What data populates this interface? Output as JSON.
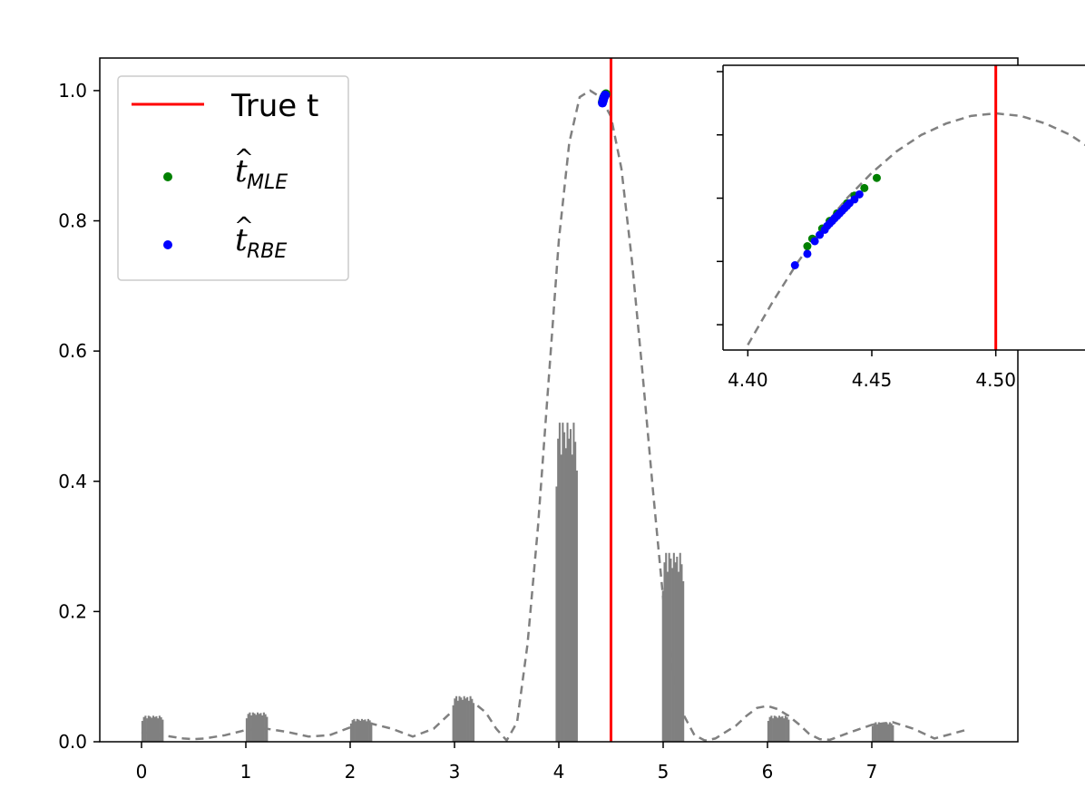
{
  "chart_data": [
    {
      "type": "bar",
      "title": "",
      "xlabel": "",
      "ylabel": "",
      "xlim": [
        -0.4,
        8.4
      ],
      "ylim": [
        0,
        1.05
      ],
      "grid": false,
      "legend_position": "top-left",
      "x_ticks": [
        {
          "value": 0,
          "label": "0"
        },
        {
          "value": 1,
          "label": "1"
        },
        {
          "value": 2,
          "label": "2"
        },
        {
          "value": 3,
          "label": "3"
        },
        {
          "value": 4,
          "label": "4"
        },
        {
          "value": 5,
          "label": "5"
        },
        {
          "value": 6,
          "label": "6"
        },
        {
          "value": 7,
          "label": "7"
        }
      ],
      "y_ticks": [
        {
          "value": 0.0,
          "label": "0.0"
        },
        {
          "value": 0.2,
          "label": "0.2"
        },
        {
          "value": 0.4,
          "label": "0.4"
        },
        {
          "value": 0.6,
          "label": "0.6"
        },
        {
          "value": 0.8,
          "label": "0.8"
        },
        {
          "value": 1.0,
          "label": "1.0"
        }
      ],
      "true_t": 4.5,
      "series": [
        {
          "name": "",
          "kind": "histogram-clusters",
          "color": "#808080",
          "bar_width": 0.012,
          "clusters": [
            {
              "center": 0.1,
              "height": 0.04
            },
            {
              "center": 1.1,
              "height": 0.045
            },
            {
              "center": 2.1,
              "height": 0.035
            },
            {
              "center": 3.08,
              "height": 0.07
            },
            {
              "center": 4.07,
              "height": 0.49
            },
            {
              "center": 5.09,
              "height": 0.29
            },
            {
              "center": 6.1,
              "height": 0.04
            },
            {
              "center": 7.1,
              "height": 0.03
            }
          ]
        },
        {
          "name": "",
          "kind": "dashed-curve",
          "color": "#808080",
          "x": [
            0.0,
            0.2,
            0.4,
            0.5,
            0.6,
            0.8,
            1.0,
            1.2,
            1.4,
            1.6,
            1.8,
            2.0,
            2.2,
            2.4,
            2.6,
            2.8,
            3.0,
            3.1,
            3.2,
            3.3,
            3.4,
            3.5,
            3.6,
            3.7,
            3.8,
            3.9,
            4.0,
            4.1,
            4.2,
            4.3,
            4.4,
            4.5,
            4.6,
            4.7,
            4.8,
            4.9,
            5.0,
            5.1,
            5.2,
            5.3,
            5.4,
            5.5,
            5.6,
            5.7,
            5.8,
            5.9,
            6.0,
            6.1,
            6.2,
            6.3,
            6.4,
            6.5,
            6.6,
            6.8,
            7.0,
            7.2,
            7.4,
            7.6,
            7.9
          ],
          "y": [
            0.015,
            0.01,
            0.005,
            0.004,
            0.005,
            0.01,
            0.018,
            0.02,
            0.015,
            0.008,
            0.01,
            0.022,
            0.028,
            0.02,
            0.008,
            0.02,
            0.05,
            0.06,
            0.058,
            0.045,
            0.02,
            0.002,
            0.03,
            0.15,
            0.33,
            0.55,
            0.77,
            0.92,
            0.99,
            1.0,
            0.99,
            0.96,
            0.88,
            0.74,
            0.57,
            0.39,
            0.22,
            0.1,
            0.04,
            0.01,
            0.002,
            0.005,
            0.015,
            0.025,
            0.04,
            0.052,
            0.055,
            0.05,
            0.04,
            0.027,
            0.012,
            0.004,
            0.003,
            0.015,
            0.026,
            0.03,
            0.02,
            0.005,
            0.018
          ]
        },
        {
          "name": "True t",
          "kind": "vline",
          "color": "#ff0000",
          "x": 4.5
        },
        {
          "name": "MLE",
          "kind": "scatter",
          "color": "#008000",
          "points": [
            [
              4.418,
              0.983
            ],
            [
              4.422,
              0.985
            ],
            [
              4.426,
              0.987
            ],
            [
              4.43,
              0.989
            ],
            [
              4.435,
              0.991
            ],
            [
              4.44,
              0.992
            ],
            [
              4.446,
              0.994
            ],
            [
              4.452,
              0.995
            ]
          ]
        },
        {
          "name": "RBE",
          "kind": "scatter",
          "color": "#0000ff",
          "points": [
            [
              4.418,
              0.981
            ],
            [
              4.424,
              0.984
            ],
            [
              4.427,
              0.986
            ],
            [
              4.43,
              0.988
            ],
            [
              4.432,
              0.989
            ],
            [
              4.435,
              0.99
            ],
            [
              4.437,
              0.991
            ],
            [
              4.44,
              0.992
            ],
            [
              4.443,
              0.993
            ],
            [
              4.445,
              0.993
            ]
          ]
        }
      ],
      "legend": [
        {
          "label": "True t",
          "marker": "line",
          "color": "#ff0000"
        },
        {
          "label": "t",
          "label_sub": "MLE",
          "marker": "dot",
          "color": "#008000"
        },
        {
          "label": "t",
          "label_sub": "RBE",
          "marker": "dot",
          "color": "#0000ff"
        }
      ]
    },
    {
      "type": "scatter",
      "role": "inset",
      "xlim": [
        4.39,
        4.54
      ],
      "ylim": [
        0.978,
        1.0005
      ],
      "x_ticks": [
        {
          "value": 4.4,
          "label": "4.40"
        },
        {
          "value": 4.45,
          "label": "4.45"
        },
        {
          "value": 4.5,
          "label": "4.50"
        }
      ],
      "y_tick_values": [
        0.98,
        0.985,
        0.99,
        0.995,
        1.0
      ],
      "true_t": 4.5,
      "curve": {
        "color": "#808080",
        "x": [
          4.4,
          4.41,
          4.42,
          4.43,
          4.44,
          4.45,
          4.46,
          4.47,
          4.48,
          4.49,
          4.5,
          4.51,
          4.52,
          4.53,
          4.54
        ],
        "y": [
          0.9784,
          0.9818,
          0.9849,
          0.9876,
          0.99,
          0.992,
          0.9937,
          0.995,
          0.9959,
          0.9965,
          0.9967,
          0.9965,
          0.9959,
          0.995,
          0.9937
        ]
      },
      "mle_points": [
        [
          4.424,
          0.9862
        ],
        [
          4.426,
          0.9868
        ],
        [
          4.43,
          0.9876
        ],
        [
          4.433,
          0.9882
        ],
        [
          4.436,
          0.9888
        ],
        [
          4.44,
          0.9896
        ],
        [
          4.443,
          0.9902
        ],
        [
          4.447,
          0.9908
        ],
        [
          4.452,
          0.9916
        ]
      ],
      "rbe_points": [
        [
          4.419,
          0.9847
        ],
        [
          4.424,
          0.9856
        ],
        [
          4.427,
          0.9866
        ],
        [
          4.429,
          0.9871
        ],
        [
          4.431,
          0.9875
        ],
        [
          4.432,
          0.9878
        ],
        [
          4.433,
          0.988
        ],
        [
          4.434,
          0.9882
        ],
        [
          4.435,
          0.9884
        ],
        [
          4.436,
          0.9886
        ],
        [
          4.437,
          0.9888
        ],
        [
          4.438,
          0.989
        ],
        [
          4.439,
          0.9892
        ],
        [
          4.44,
          0.9894
        ],
        [
          4.441,
          0.9896
        ],
        [
          4.443,
          0.9899
        ],
        [
          4.445,
          0.9903
        ]
      ]
    }
  ]
}
